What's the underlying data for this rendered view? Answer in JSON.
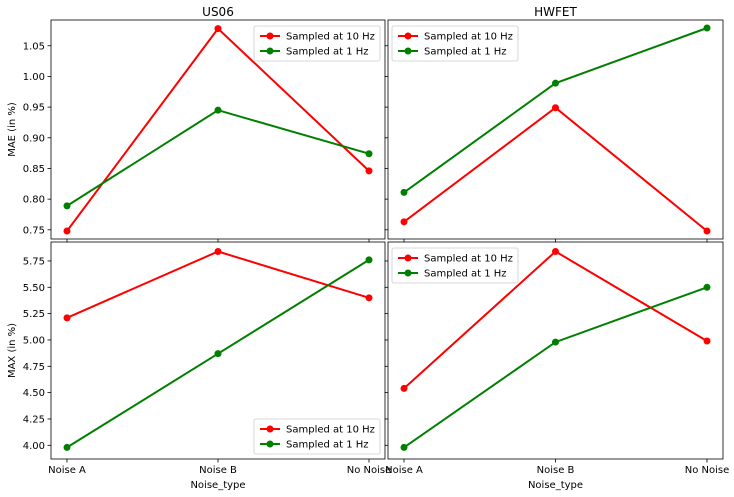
{
  "figure": {
    "colors": {
      "series_10hz": "#ff0000",
      "series_1hz": "#008000",
      "frame": "#000000",
      "legend_border": "#cccccc"
    }
  },
  "chart_data": [
    {
      "type": "line",
      "title": "US06",
      "xlabel": "",
      "ylabel": "MAE (in %)",
      "categories": [
        "Noise A",
        "Noise B",
        "No Noise"
      ],
      "show_xticklabels": false,
      "ylim": [
        0.735,
        1.092
      ],
      "yticks": [
        0.75,
        0.8,
        0.85,
        0.9,
        0.95,
        1.0,
        1.05
      ],
      "ytick_labels": [
        "0.75",
        "0.80",
        "0.85",
        "0.90",
        "0.95",
        "1.00",
        "1.05"
      ],
      "show_yticklabels": true,
      "legend_position": "top-right",
      "grid": false,
      "series": [
        {
          "name": "Sampled at 10 Hz",
          "color": "#ff0000",
          "values": [
            0.748,
            1.078,
            0.846
          ]
        },
        {
          "name": "Sampled at 1 Hz",
          "color": "#008000",
          "values": [
            0.789,
            0.945,
            0.874
          ]
        }
      ]
    },
    {
      "type": "line",
      "title": "HWFET",
      "xlabel": "",
      "ylabel": "",
      "categories": [
        "Noise A",
        "Noise B",
        "No Noise"
      ],
      "show_xticklabels": false,
      "ylim": [
        0.735,
        1.092
      ],
      "yticks": [
        0.75,
        0.8,
        0.85,
        0.9,
        0.95,
        1.0,
        1.05
      ],
      "ytick_labels": [
        "0.75",
        "0.80",
        "0.85",
        "0.90",
        "0.95",
        "1.00",
        "1.05"
      ],
      "show_yticklabels": false,
      "legend_position": "top-left",
      "grid": false,
      "series": [
        {
          "name": "Sampled at 10 Hz",
          "color": "#ff0000",
          "values": [
            0.763,
            0.949,
            0.748
          ]
        },
        {
          "name": "Sampled at 1 Hz",
          "color": "#008000",
          "values": [
            0.811,
            0.989,
            1.079
          ]
        }
      ]
    },
    {
      "type": "line",
      "title": "",
      "xlabel": "Noise_type",
      "ylabel": "MAX (in %)",
      "categories": [
        "Noise A",
        "Noise B",
        "No Noise"
      ],
      "show_xticklabels": true,
      "ylim": [
        3.87,
        5.93
      ],
      "yticks": [
        4.0,
        4.25,
        4.5,
        4.75,
        5.0,
        5.25,
        5.5,
        5.75
      ],
      "ytick_labels": [
        "4.00",
        "4.25",
        "4.50",
        "4.75",
        "5.00",
        "5.25",
        "5.50",
        "5.75"
      ],
      "show_yticklabels": true,
      "legend_position": "bottom-right",
      "grid": false,
      "series": [
        {
          "name": "Sampled at 10 Hz",
          "color": "#ff0000",
          "values": [
            5.21,
            5.84,
            5.4
          ]
        },
        {
          "name": "Sampled at 1 Hz",
          "color": "#008000",
          "values": [
            3.98,
            4.87,
            5.76
          ]
        }
      ]
    },
    {
      "type": "line",
      "title": "",
      "xlabel": "Noise_type",
      "ylabel": "",
      "categories": [
        "Noise A",
        "Noise B",
        "No Noise"
      ],
      "show_xticklabels": true,
      "ylim": [
        3.87,
        5.93
      ],
      "yticks": [
        4.0,
        4.25,
        4.5,
        4.75,
        5.0,
        5.25,
        5.5,
        5.75
      ],
      "ytick_labels": [
        "4.00",
        "4.25",
        "4.50",
        "4.75",
        "5.00",
        "5.25",
        "5.50",
        "5.75"
      ],
      "show_yticklabels": false,
      "legend_position": "top-left",
      "grid": false,
      "series": [
        {
          "name": "Sampled at 10 Hz",
          "color": "#ff0000",
          "values": [
            4.54,
            5.84,
            4.99
          ]
        },
        {
          "name": "Sampled at 1 Hz",
          "color": "#008000",
          "values": [
            3.98,
            4.98,
            5.5
          ]
        }
      ]
    }
  ]
}
